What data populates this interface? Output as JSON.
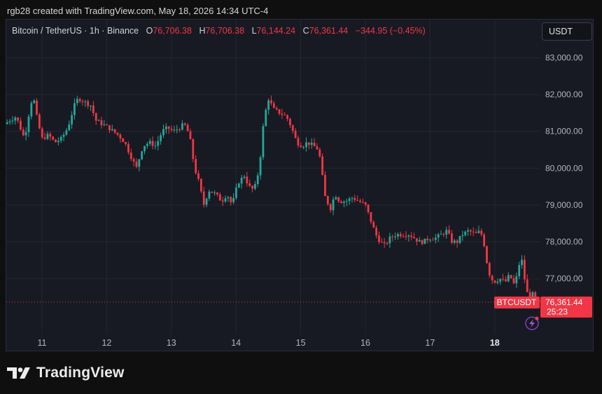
{
  "header": {
    "attribution": "rgb28 created with TradingView.com, May 18, 2026 14:34 UTC-4"
  },
  "legend": {
    "symbol": "Bitcoin / TetherUS · 1h · Binance",
    "open_key": "O",
    "open": "76,706.38",
    "high_key": "H",
    "high": "76,706.38",
    "low_key": "L",
    "low": "76,144.24",
    "close_key": "C",
    "close": "76,361.44",
    "change": "−344.95 (−0.45%)"
  },
  "currency_button": "USDT",
  "footer": {
    "brand": "TradingView"
  },
  "colors": {
    "up": "#26a69a",
    "down": "#f23645",
    "background": "#171a22",
    "grid": "#232733",
    "text": "#b2b5be"
  },
  "chart_data": {
    "type": "candlestick",
    "symbol": "BTCUSDT",
    "last_price": 76361.44,
    "last_price_label": "76,361.44",
    "countdown": "25:23",
    "ylim": [
      76200,
      83500
    ],
    "y_ticks": [
      {
        "value": 83000,
        "label": "83,000.00"
      },
      {
        "value": 82000,
        "label": "82,000.00"
      },
      {
        "value": 81000,
        "label": "81,000.00"
      },
      {
        "value": 80000,
        "label": "80,000.00"
      },
      {
        "value": 79000,
        "label": "79,000.00"
      },
      {
        "value": 78000,
        "label": "78,000.00"
      },
      {
        "value": 77000,
        "label": "77,000.00"
      }
    ],
    "x_ticks": [
      {
        "day": 11,
        "label": "11"
      },
      {
        "day": 12,
        "label": "12"
      },
      {
        "day": 13,
        "label": "13"
      },
      {
        "day": 14,
        "label": "14"
      },
      {
        "day": 15,
        "label": "15"
      },
      {
        "day": 16,
        "label": "16"
      },
      {
        "day": 17,
        "label": "17"
      },
      {
        "day": 18,
        "label": "18",
        "bold": true
      }
    ],
    "day_range": [
      10.44,
      18.69
    ],
    "price_path": [
      [
        10.45,
        81200
      ],
      [
        10.52,
        81300
      ],
      [
        10.62,
        81400
      ],
      [
        10.75,
        80800
      ],
      [
        10.82,
        81500
      ],
      [
        10.88,
        82000
      ],
      [
        10.95,
        81300
      ],
      [
        11.02,
        80800
      ],
      [
        11.12,
        80900
      ],
      [
        11.22,
        80700
      ],
      [
        11.32,
        80800
      ],
      [
        11.42,
        81100
      ],
      [
        11.52,
        81700
      ],
      [
        11.58,
        81900
      ],
      [
        11.68,
        81800
      ],
      [
        11.78,
        81700
      ],
      [
        11.85,
        81300
      ],
      [
        11.95,
        81200
      ],
      [
        12.05,
        81100
      ],
      [
        12.12,
        81000
      ],
      [
        12.2,
        80900
      ],
      [
        12.3,
        80700
      ],
      [
        12.4,
        80300
      ],
      [
        12.48,
        80000
      ],
      [
        12.58,
        80600
      ],
      [
        12.68,
        80700
      ],
      [
        12.78,
        80600
      ],
      [
        12.88,
        81000
      ],
      [
        12.96,
        81100
      ],
      [
        13.05,
        81000
      ],
      [
        13.15,
        81100
      ],
      [
        13.22,
        81200
      ],
      [
        13.3,
        80900
      ],
      [
        13.38,
        80000
      ],
      [
        13.45,
        79600
      ],
      [
        13.52,
        79000
      ],
      [
        13.6,
        79400
      ],
      [
        13.7,
        79300
      ],
      [
        13.8,
        79100
      ],
      [
        13.88,
        79300
      ],
      [
        13.96,
        79000
      ],
      [
        14.05,
        79600
      ],
      [
        14.15,
        79800
      ],
      [
        14.22,
        79500
      ],
      [
        14.3,
        79400
      ],
      [
        14.38,
        80000
      ],
      [
        14.45,
        81300
      ],
      [
        14.52,
        81900
      ],
      [
        14.6,
        81600
      ],
      [
        14.7,
        81500
      ],
      [
        14.8,
        81400
      ],
      [
        14.88,
        81100
      ],
      [
        14.96,
        80700
      ],
      [
        15.05,
        80600
      ],
      [
        15.12,
        80700
      ],
      [
        15.22,
        80600
      ],
      [
        15.3,
        80500
      ],
      [
        15.4,
        79200
      ],
      [
        15.48,
        78900
      ],
      [
        15.55,
        79300
      ],
      [
        15.62,
        79100
      ],
      [
        15.72,
        79100
      ],
      [
        15.82,
        79200
      ],
      [
        15.92,
        79100
      ],
      [
        16.02,
        79000
      ],
      [
        16.1,
        78600
      ],
      [
        16.18,
        78200
      ],
      [
        16.25,
        78000
      ],
      [
        16.32,
        77900
      ],
      [
        16.4,
        78100
      ],
      [
        16.5,
        78200
      ],
      [
        16.6,
        78200
      ],
      [
        16.7,
        78200
      ],
      [
        16.78,
        78100
      ],
      [
        16.85,
        78000
      ],
      [
        16.92,
        78000
      ],
      [
        17.0,
        78100
      ],
      [
        17.1,
        78100
      ],
      [
        17.2,
        78200
      ],
      [
        17.28,
        78300
      ],
      [
        17.36,
        78000
      ],
      [
        17.44,
        78000
      ],
      [
        17.52,
        78200
      ],
      [
        17.62,
        78300
      ],
      [
        17.72,
        78200
      ],
      [
        17.8,
        78300
      ],
      [
        17.86,
        77900
      ],
      [
        17.92,
        77200
      ],
      [
        18.0,
        76900
      ],
      [
        18.1,
        77000
      ],
      [
        18.18,
        76900
      ],
      [
        18.25,
        77100
      ],
      [
        18.33,
        76800
      ],
      [
        18.4,
        77400
      ],
      [
        18.45,
        77500
      ],
      [
        18.5,
        76700
      ],
      [
        18.55,
        76500
      ],
      [
        18.6,
        76600
      ],
      [
        18.66,
        76350
      ]
    ]
  }
}
